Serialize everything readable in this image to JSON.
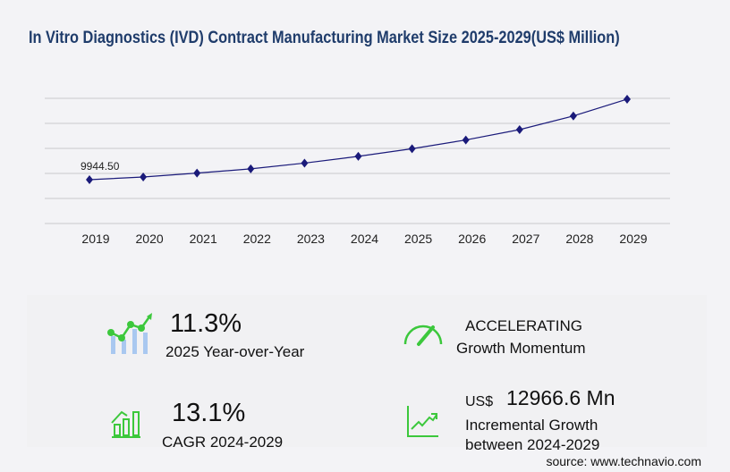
{
  "title": "In Vitro Diagnostics (IVD) Contract Manufacturing Market Size 2025-2029(US$ Million)",
  "chart_data": {
    "type": "line",
    "title": "In Vitro Diagnostics (IVD) Contract Manufacturing Market Size 2025-2029(US$ Million)",
    "categories": [
      "2019",
      "2020",
      "2021",
      "2022",
      "2023",
      "2024",
      "2025",
      "2026",
      "2027",
      "2028",
      "2029"
    ],
    "values": [
      9944.5,
      10550,
      11430,
      12400,
      13700,
      15237,
      16959,
      18950,
      21300,
      24400,
      28204
    ],
    "data_labels": [
      {
        "category": "2019",
        "text": "9944.50"
      }
    ],
    "ylim": [
      0,
      28400
    ],
    "grid": true,
    "line_color": "#1a1a7a"
  },
  "stats": {
    "yoy_value": "11.3%",
    "yoy_label": "2025 Year-over-Year",
    "momentum_value": "ACCELERATING",
    "momentum_label": "Growth Momentum",
    "cagr_value": "13.1%",
    "cagr_label": "CAGR 2024-2029",
    "incr_currency": "US$",
    "incr_value": "12966.6 Mn",
    "incr_label1": "Incremental Growth",
    "incr_label2": "between 2024-2029"
  },
  "source": "source: www.technavio.com",
  "colors": {
    "accent_green": "#3cc83c",
    "title": "#1f3c6b",
    "bar_blue": "#a9c8f0"
  }
}
